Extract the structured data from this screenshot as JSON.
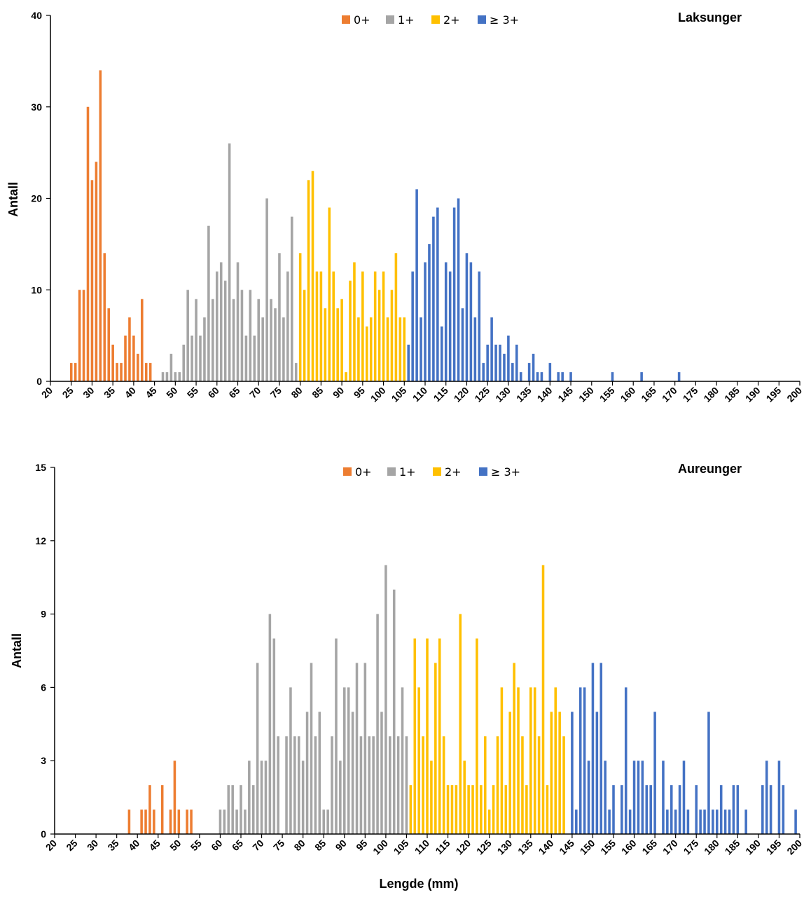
{
  "colors": {
    "0+": "#ED7D31",
    "1+": "#A5A5A5",
    "2+": "#FFC000",
    "3+": "#4472C4",
    "axis": "#000000"
  },
  "legend": [
    "0+",
    "1+",
    "2+",
    "≥ 3+"
  ],
  "chart_data": [
    {
      "type": "bar",
      "title": "Laksunger",
      "ylabel": "Antall",
      "xlabel": "",
      "xlim": [
        20,
        200
      ],
      "ylim": [
        0,
        40
      ],
      "yticks": [
        0,
        10,
        20,
        30,
        40
      ],
      "xticks": [
        20,
        25,
        30,
        35,
        40,
        45,
        50,
        55,
        60,
        65,
        70,
        75,
        80,
        85,
        90,
        95,
        100,
        105,
        110,
        115,
        120,
        125,
        130,
        135,
        140,
        145,
        150,
        155,
        160,
        165,
        170,
        175,
        180,
        185,
        190,
        195,
        200
      ],
      "series": [
        {
          "name": "0+",
          "x": [
            25,
            26,
            27,
            28,
            29,
            30,
            31,
            32,
            33,
            34,
            35,
            36,
            37,
            38,
            39,
            40,
            41,
            42,
            43,
            44
          ],
          "values": [
            2,
            2,
            10,
            10,
            30,
            22,
            24,
            34,
            14,
            8,
            4,
            2,
            2,
            5,
            7,
            5,
            3,
            9,
            2,
            2
          ]
        },
        {
          "name": "1+",
          "x": [
            47,
            48,
            49,
            50,
            51,
            52,
            53,
            54,
            55,
            56,
            57,
            58,
            59,
            60,
            61,
            62,
            63,
            64,
            65,
            66,
            67,
            68,
            69,
            70,
            71,
            72,
            73,
            74,
            75,
            76,
            77,
            78,
            79
          ],
          "values": [
            1,
            1,
            3,
            1,
            1,
            4,
            10,
            5,
            9,
            5,
            7,
            17,
            9,
            12,
            13,
            11,
            26,
            9,
            13,
            10,
            5,
            10,
            5,
            9,
            7,
            20,
            9,
            8,
            14,
            7,
            12,
            18,
            2
          ]
        },
        {
          "name": "2+",
          "x": [
            80,
            81,
            82,
            83,
            84,
            85,
            86,
            87,
            88,
            89,
            90,
            91,
            92,
            93,
            94,
            95,
            96,
            97,
            98,
            99,
            100,
            101,
            102,
            103,
            104,
            105
          ],
          "values": [
            14,
            10,
            22,
            23,
            12,
            12,
            8,
            19,
            12,
            8,
            9,
            1,
            11,
            13,
            7,
            12,
            6,
            7,
            12,
            10,
            12,
            7,
            10,
            14,
            7,
            7
          ]
        },
        {
          "name": "≥ 3+",
          "x": [
            106,
            107,
            108,
            109,
            110,
            111,
            112,
            113,
            114,
            115,
            116,
            117,
            118,
            119,
            120,
            121,
            122,
            123,
            124,
            125,
            126,
            127,
            128,
            129,
            130,
            131,
            132,
            133,
            135,
            136,
            137,
            138,
            140,
            142,
            143,
            145,
            155,
            162,
            171
          ],
          "values": [
            4,
            12,
            21,
            7,
            13,
            15,
            18,
            19,
            6,
            13,
            12,
            19,
            20,
            8,
            14,
            13,
            7,
            12,
            2,
            4,
            7,
            4,
            4,
            3,
            5,
            2,
            4,
            1,
            2,
            3,
            1,
            1,
            2,
            1,
            1,
            1,
            1,
            1,
            1
          ]
        }
      ]
    },
    {
      "type": "bar",
      "title": "Aureunger",
      "ylabel": "Antall",
      "xlabel": "Lengde (mm)",
      "xlim": [
        20,
        200
      ],
      "ylim": [
        0,
        15
      ],
      "yticks": [
        0,
        3,
        6,
        9,
        12,
        15
      ],
      "xticks": [
        20,
        25,
        30,
        35,
        40,
        45,
        50,
        55,
        60,
        65,
        70,
        75,
        80,
        85,
        90,
        95,
        100,
        105,
        110,
        115,
        120,
        125,
        130,
        135,
        140,
        145,
        150,
        155,
        160,
        165,
        170,
        175,
        180,
        185,
        190,
        195,
        200
      ],
      "series": [
        {
          "name": "0+",
          "x": [
            38,
            41,
            42,
            43,
            44,
            46,
            48,
            49,
            50,
            52,
            53
          ],
          "values": [
            1,
            1,
            1,
            2,
            1,
            2,
            1,
            3,
            1,
            1,
            1
          ]
        },
        {
          "name": "1+",
          "x": [
            60,
            61,
            62,
            63,
            64,
            65,
            66,
            67,
            68,
            69,
            70,
            71,
            72,
            73,
            74,
            76,
            77,
            78,
            79,
            80,
            81,
            82,
            83,
            84,
            85,
            86,
            87,
            88,
            89,
            90,
            91,
            92,
            93,
            94,
            95,
            96,
            97,
            98,
            99,
            100,
            101,
            102,
            103,
            104,
            105
          ],
          "values": [
            1,
            1,
            2,
            2,
            1,
            2,
            1,
            3,
            2,
            7,
            3,
            3,
            9,
            8,
            4,
            4,
            6,
            4,
            4,
            3,
            5,
            7,
            4,
            5,
            1,
            1,
            4,
            8,
            3,
            6,
            6,
            5,
            7,
            4,
            7,
            4,
            4,
            9,
            5,
            11,
            4,
            10,
            4,
            6,
            4
          ]
        },
        {
          "name": "2+",
          "x": [
            106,
            107,
            108,
            109,
            110,
            111,
            112,
            113,
            114,
            115,
            116,
            117,
            118,
            119,
            120,
            121,
            122,
            123,
            124,
            125,
            126,
            127,
            128,
            129,
            130,
            131,
            132,
            133,
            134,
            135,
            136,
            137,
            138,
            139,
            140,
            141,
            142,
            143
          ],
          "values": [
            2,
            8,
            6,
            4,
            8,
            3,
            7,
            8,
            4,
            2,
            2,
            2,
            9,
            3,
            2,
            2,
            8,
            2,
            4,
            1,
            2,
            4,
            6,
            2,
            5,
            7,
            6,
            4,
            2,
            6,
            6,
            4,
            11,
            2,
            5,
            6,
            5,
            4
          ]
        },
        {
          "name": "≥ 3+",
          "x": [
            145,
            146,
            147,
            148,
            149,
            150,
            151,
            152,
            153,
            154,
            155,
            157,
            158,
            159,
            160,
            161,
            162,
            163,
            164,
            165,
            167,
            168,
            169,
            170,
            171,
            172,
            173,
            175,
            176,
            177,
            178,
            179,
            180,
            181,
            182,
            183,
            184,
            185,
            187,
            191,
            192,
            193,
            195,
            196,
            199
          ],
          "values": [
            5,
            1,
            6,
            6,
            3,
            7,
            5,
            7,
            3,
            1,
            2,
            2,
            6,
            1,
            3,
            3,
            3,
            2,
            2,
            5,
            3,
            1,
            2,
            1,
            2,
            3,
            1,
            2,
            1,
            1,
            5,
            1,
            1,
            2,
            1,
            1,
            2,
            2,
            1,
            2,
            3,
            2,
            3,
            2,
            1
          ]
        }
      ]
    }
  ]
}
